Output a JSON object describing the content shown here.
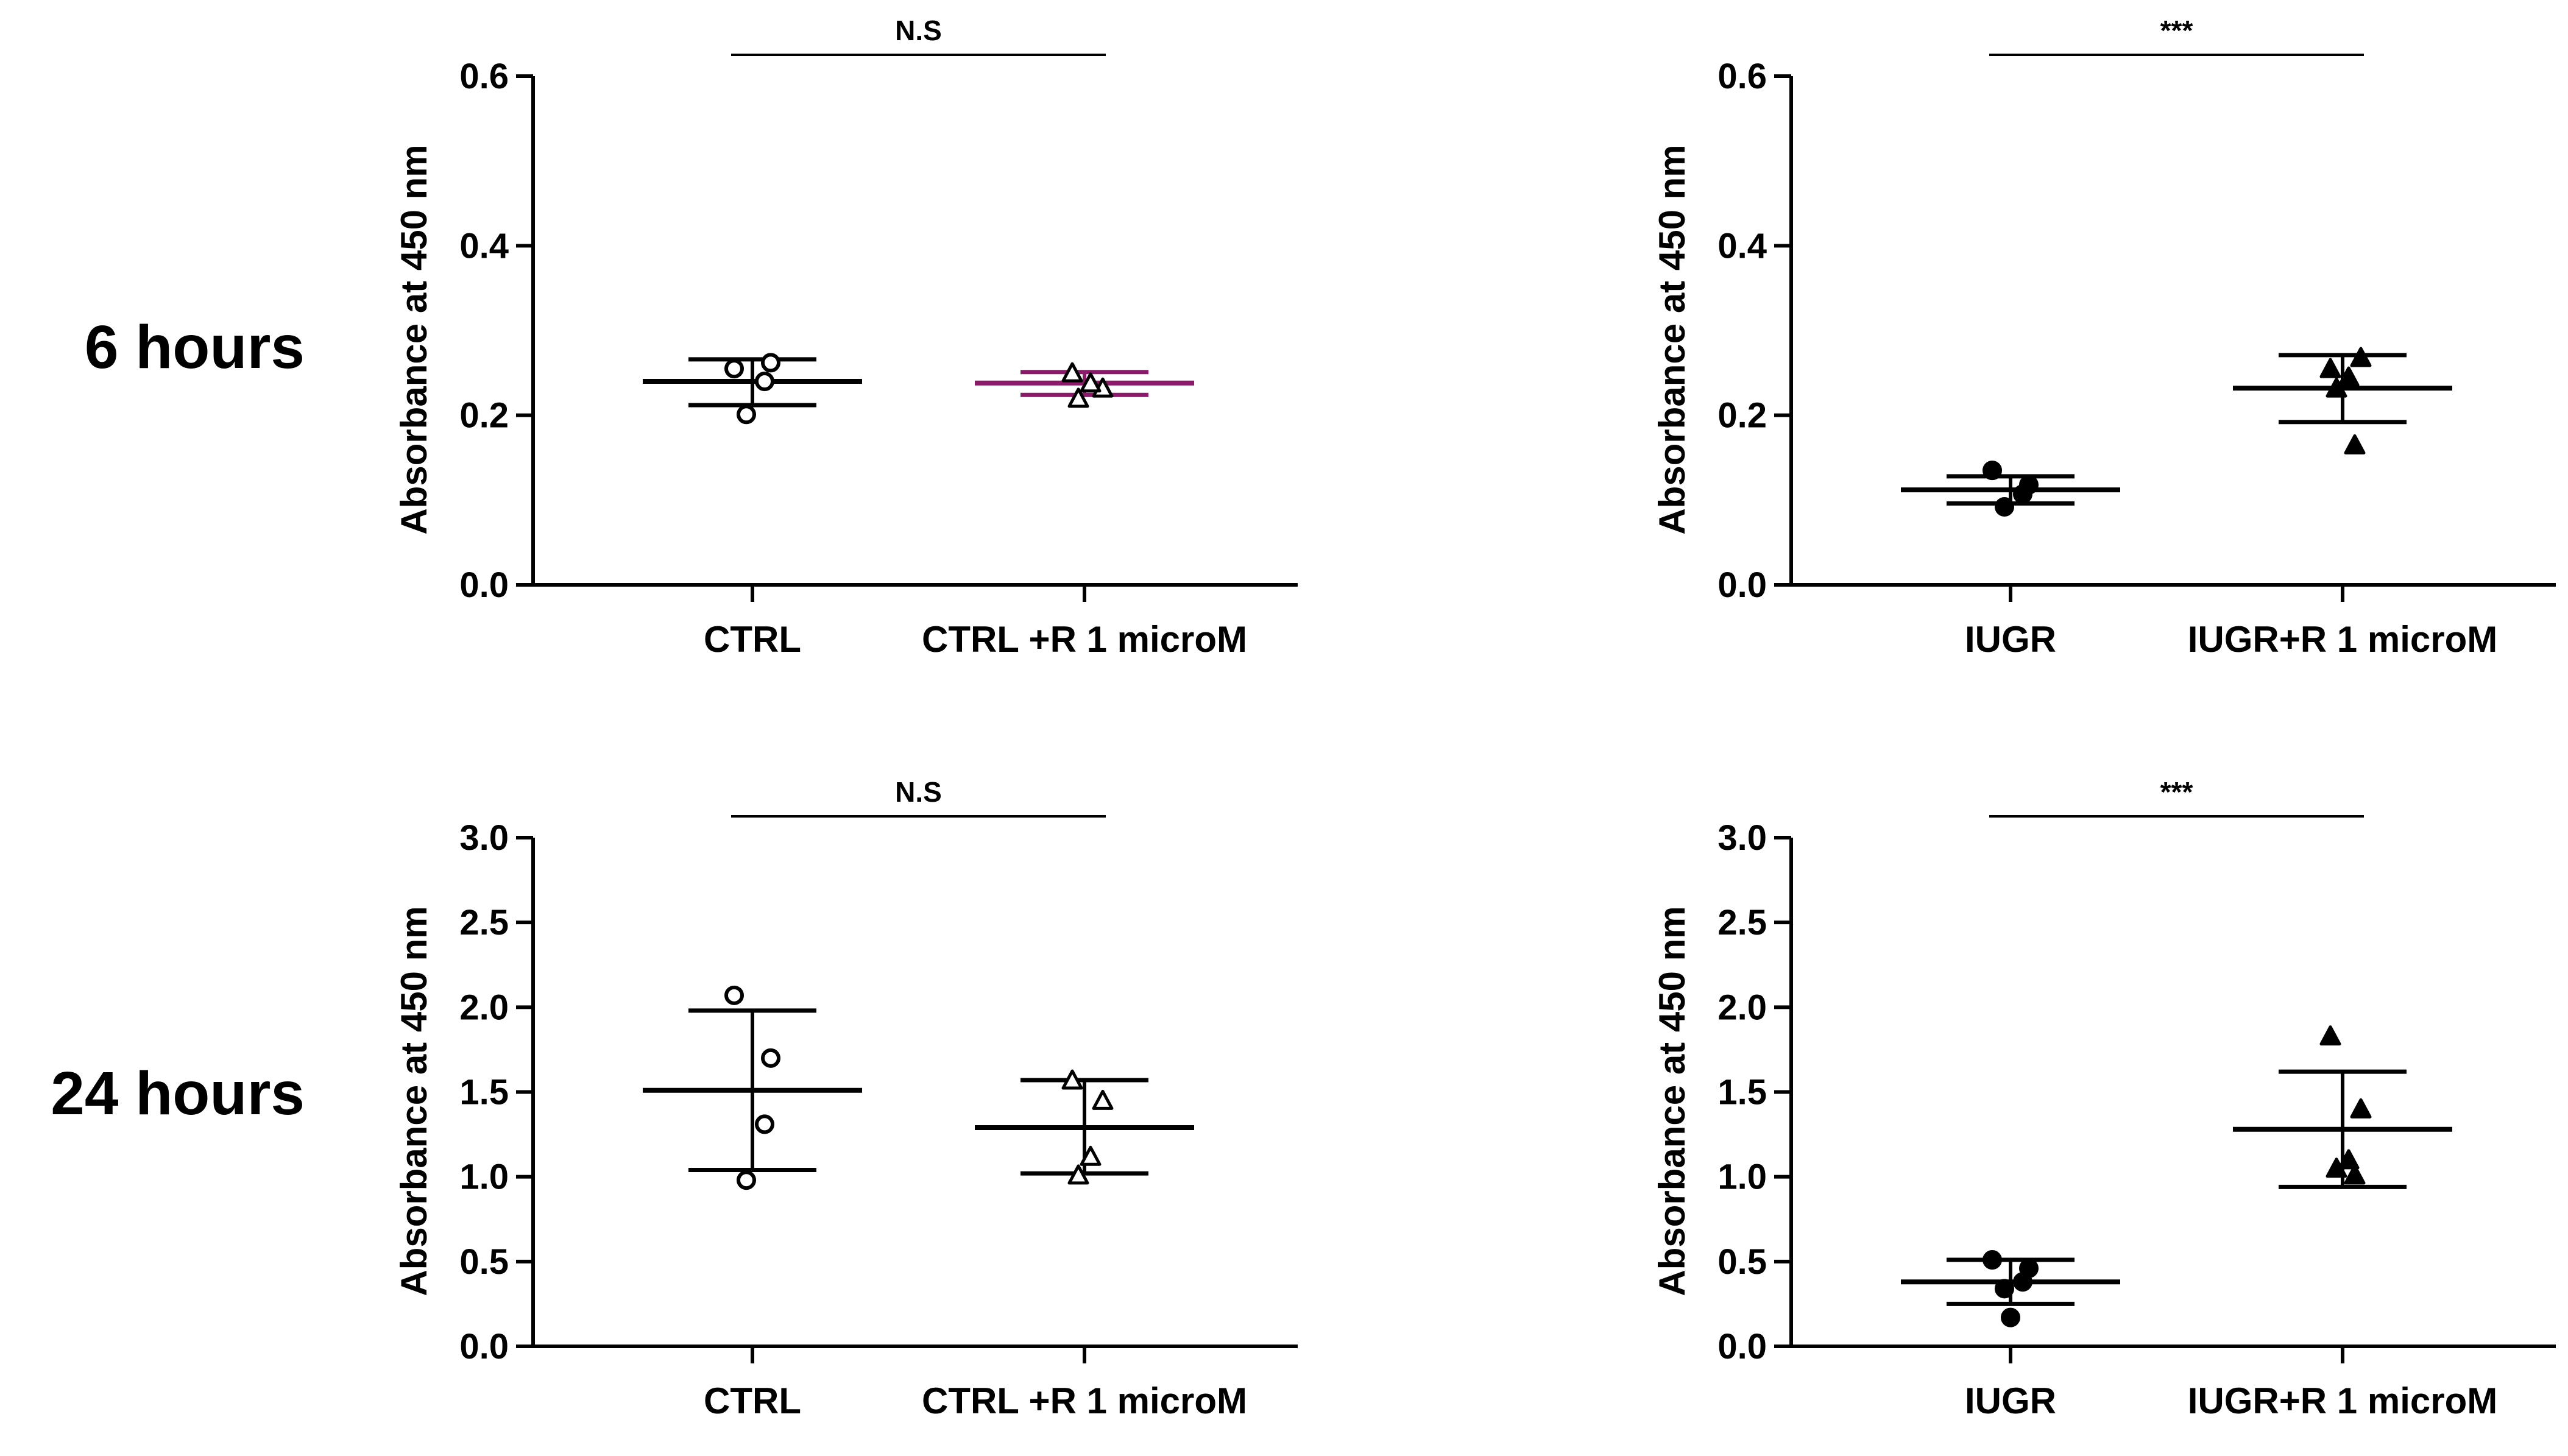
{
  "row_labels": [
    "6 hours",
    "24 hours"
  ],
  "chart_data": [
    {
      "type": "scatter",
      "title": "",
      "ylabel": "Absorbance at 450 nm",
      "xlabel": "",
      "ylim": [
        0,
        0.6
      ],
      "yticks": [
        0.0,
        0.2,
        0.4,
        0.6
      ],
      "ytick_labels": [
        "0.0",
        "0.2",
        "0.4",
        "0.6"
      ],
      "categories": [
        "CTRL",
        "CTRL +R 1 microM"
      ],
      "significance": "N.S",
      "series": [
        {
          "name": "CTRL",
          "marker": "circle-open",
          "color": "#000000",
          "values": [
            0.255,
            0.262,
            0.24,
            0.201
          ],
          "mean": 0.24,
          "sd_lower": 0.212,
          "sd_upper": 0.266
        },
        {
          "name": "CTRL +R 1 microM",
          "marker": "triangle-open",
          "color": "#8b1a6b",
          "values": [
            0.25,
            0.232,
            0.238,
            0.22
          ],
          "mean": 0.238,
          "sd_lower": 0.224,
          "sd_upper": 0.251
        }
      ]
    },
    {
      "type": "scatter",
      "title": "",
      "ylabel": "Absorbance at 450 nm",
      "xlabel": "",
      "ylim": [
        0,
        0.6
      ],
      "yticks": [
        0.0,
        0.2,
        0.4,
        0.6
      ],
      "ytick_labels": [
        "0.0",
        "0.2",
        "0.4",
        "0.6"
      ],
      "categories": [
        "IUGR",
        "IUGR+R 1 microM"
      ],
      "significance": "***",
      "series": [
        {
          "name": "IUGR",
          "marker": "circle-filled",
          "color": "#000000",
          "values": [
            0.135,
            0.118,
            0.107,
            0.092
          ],
          "mean": 0.112,
          "sd_lower": 0.096,
          "sd_upper": 0.128
        },
        {
          "name": "IUGR+R 1 microM",
          "marker": "triangle-filled",
          "color": "#000000",
          "values": [
            0.255,
            0.268,
            0.245,
            0.232,
            0.165
          ],
          "mean": 0.232,
          "sd_lower": 0.192,
          "sd_upper": 0.271
        }
      ]
    },
    {
      "type": "scatter",
      "title": "",
      "ylabel": "Absorbance at 450 nm",
      "xlabel": "",
      "ylim": [
        0,
        3.0
      ],
      "yticks": [
        0.0,
        0.5,
        1.0,
        1.5,
        2.0,
        2.5,
        3.0
      ],
      "ytick_labels": [
        "0.0",
        "0.5",
        "1.0",
        "1.5",
        "2.0",
        "2.5",
        "3.0"
      ],
      "categories": [
        "CTRL",
        "CTRL +R 1 microM"
      ],
      "significance": "N.S",
      "series": [
        {
          "name": "CTRL",
          "marker": "circle-open",
          "color": "#000000",
          "values": [
            2.07,
            1.7,
            1.31,
            0.98
          ],
          "mean": 1.51,
          "sd_lower": 1.04,
          "sd_upper": 1.98
        },
        {
          "name": "CTRL +R 1 microM",
          "marker": "triangle-open",
          "color": "#000000",
          "values": [
            1.57,
            1.45,
            1.12,
            1.01
          ],
          "mean": 1.29,
          "sd_lower": 1.02,
          "sd_upper": 1.57
        }
      ]
    },
    {
      "type": "scatter",
      "title": "",
      "ylabel": "Absorbance at 450 nm",
      "xlabel": "",
      "ylim": [
        0,
        3.0
      ],
      "yticks": [
        0.0,
        0.5,
        1.0,
        1.5,
        2.0,
        2.5,
        3.0
      ],
      "ytick_labels": [
        "0.0",
        "0.5",
        "1.0",
        "1.5",
        "2.0",
        "2.5",
        "3.0"
      ],
      "categories": [
        "IUGR",
        "IUGR+R 1 microM"
      ],
      "significance": "***",
      "series": [
        {
          "name": "IUGR",
          "marker": "circle-filled",
          "color": "#000000",
          "values": [
            0.51,
            0.46,
            0.38,
            0.34,
            0.17
          ],
          "mean": 0.38,
          "sd_lower": 0.25,
          "sd_upper": 0.51
        },
        {
          "name": "IUGR+R 1 microM",
          "marker": "triangle-filled",
          "color": "#000000",
          "values": [
            1.83,
            1.4,
            1.1,
            1.05,
            1.01
          ],
          "mean": 1.28,
          "sd_lower": 0.94,
          "sd_upper": 1.62
        }
      ]
    }
  ]
}
